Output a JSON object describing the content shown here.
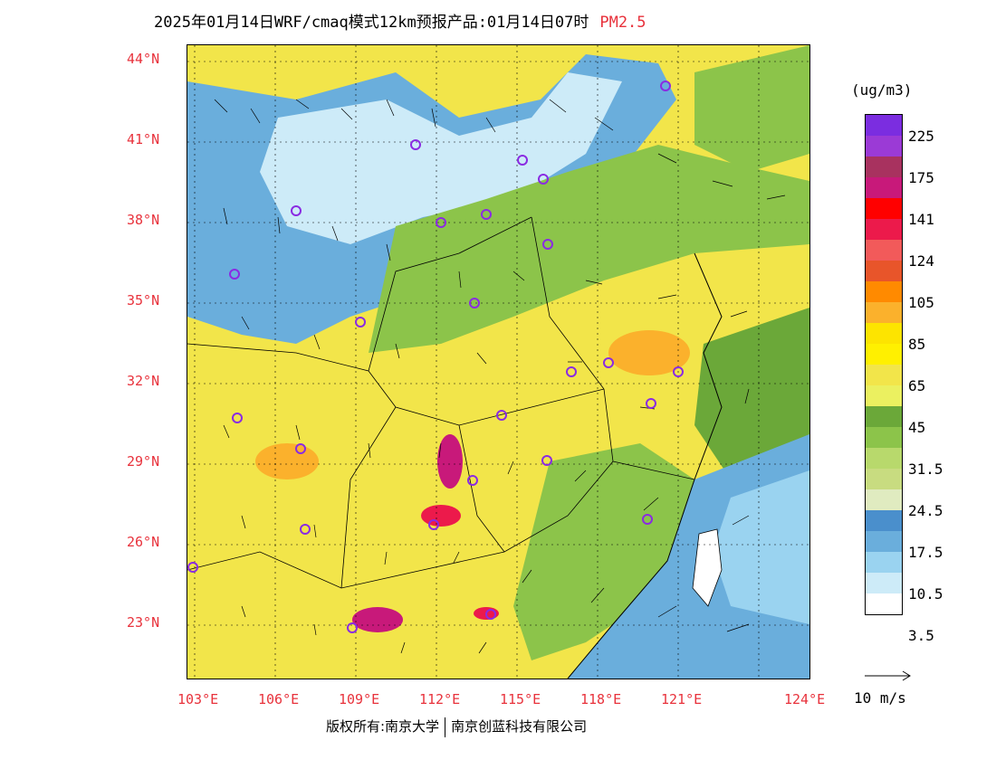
{
  "title": {
    "main": "2025年01月14日WRF/cmaq模式12km预报产品:01月14日07时",
    "pollutant": "PM2.5"
  },
  "units": "(ug/m3)",
  "wind_reference": "10 m/s",
  "footer": {
    "left": "版权所有:南京大学",
    "right": "南京创蓝科技有限公司"
  },
  "lat_labels": [
    "44°N",
    "41°N",
    "38°N",
    "35°N",
    "32°N",
    "29°N",
    "26°N",
    "23°N"
  ],
  "lon_labels": [
    "103°E",
    "106°E",
    "109°E",
    "112°E",
    "115°E",
    "118°E",
    "121°E",
    "124°E"
  ],
  "colorbar": {
    "colors": [
      "#7b2de0",
      "#9b3ad6",
      "#a8325f",
      "#c8197a",
      "#ff0000",
      "#ec1a4b",
      "#f25a5a",
      "#e8552a",
      "#ff8a00",
      "#fbb12c",
      "#fde400",
      "#fff000",
      "#f2e54a",
      "#ebf060",
      "#6ba839",
      "#8cc44a",
      "#b8d96c",
      "#c8dc80",
      "#e0ebc0",
      "#4a8fcc",
      "#6aaedc",
      "#9ad3f0",
      "#cdebf8",
      "#ffffff"
    ],
    "labels": [
      "225",
      "175",
      "141",
      "124",
      "105",
      "85",
      "65",
      "45",
      "31.5",
      "24.5",
      "17.5",
      "10.5",
      "3.5"
    ]
  },
  "colors": {
    "background_high": "#f2e54a",
    "green": "#8cc44a",
    "blue": "#6aaedc",
    "red_label": "#e8323c",
    "city_marker": "#8a2be2"
  }
}
